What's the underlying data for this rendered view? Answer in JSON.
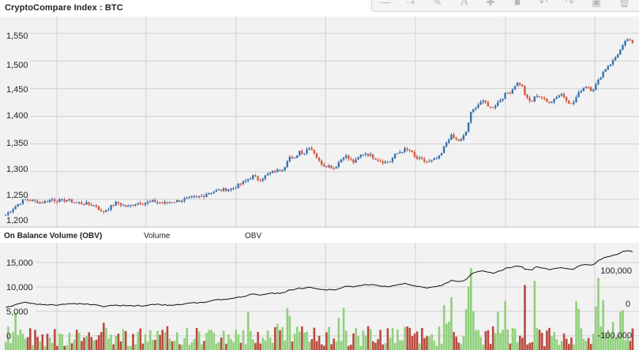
{
  "header": {
    "title": "CryptoCompare Index : BTC"
  },
  "toolbar": {
    "icons": [
      "line-tool-icon",
      "arrow-tool-icon",
      "pen-tool-icon",
      "text-tool-icon",
      "crosshair-tool-icon",
      "fill-tool-icon",
      "undo-icon",
      "redo-icon",
      "save-icon",
      "delete-icon"
    ]
  },
  "price_panel": {
    "y_ticks": [
      "1,550",
      "1,500",
      "1,450",
      "1,400",
      "1,350",
      "1,300",
      "1,250",
      "1,200"
    ]
  },
  "indicator_panel": {
    "title": "On Balance Volume (OBV)",
    "legend_volume": "Volume",
    "legend_obv": "OBV",
    "left_ticks": [
      "15,000",
      "10,000",
      "5,000",
      "0"
    ],
    "right_ticks": [
      "100,000",
      "0",
      "-100,000"
    ]
  },
  "colors": {
    "up": "#3b6fad",
    "down": "#d15a3d",
    "vol_up": "#8fd07a",
    "vol_down": "#b84a3e",
    "obv_line": "#111111",
    "grid": "#d0d0d0",
    "panel_bg": "#f2f2f2"
  },
  "chart_data": [
    {
      "type": "candlestick",
      "title": "CryptoCompare Index : BTC",
      "ylim": [
        1200,
        1580
      ],
      "close_path": [
        1222,
        1230,
        1238,
        1245,
        1250,
        1248,
        1246,
        1244,
        1246,
        1250,
        1248,
        1247,
        1249,
        1246,
        1244,
        1243,
        1242,
        1240,
        1238,
        1226,
        1232,
        1238,
        1245,
        1240,
        1236,
        1240,
        1244,
        1243,
        1244,
        1246,
        1245,
        1243,
        1244,
        1246,
        1247,
        1249,
        1251,
        1253,
        1254,
        1256,
        1262,
        1264,
        1266,
        1267,
        1268,
        1270,
        1275,
        1280,
        1287,
        1292,
        1285,
        1290,
        1296,
        1300,
        1302,
        1306,
        1328,
        1320,
        1338,
        1333,
        1346,
        1335,
        1318,
        1312,
        1310,
        1306,
        1318,
        1330,
        1322,
        1316,
        1328,
        1334,
        1330,
        1325,
        1320,
        1317,
        1318,
        1330,
        1336,
        1340,
        1338,
        1325,
        1322,
        1318,
        1318,
        1322,
        1328,
        1350,
        1365,
        1358,
        1355,
        1370,
        1405,
        1418,
        1426,
        1424,
        1414,
        1422,
        1431,
        1441,
        1445,
        1460,
        1458,
        1432,
        1425,
        1439,
        1434,
        1426,
        1427,
        1436,
        1440,
        1430,
        1420,
        1436,
        1450,
        1456,
        1446,
        1460,
        1478,
        1490,
        1498,
        1512,
        1525,
        1540,
        1530
      ],
      "volume_max": 17000,
      "obv_range": [
        -120000,
        120000
      ]
    }
  ]
}
